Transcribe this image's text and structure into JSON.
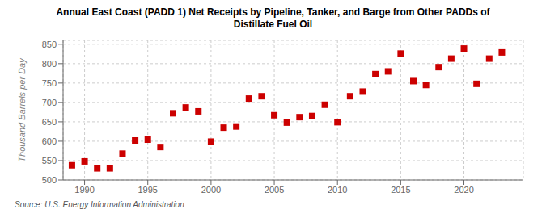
{
  "chart_data": {
    "type": "scatter",
    "title": "Annual East Coast (PADD 1) Net Receipts by Pipeline, Tanker, and Barge from Other PADDs of\nDistillate Fuel Oil",
    "ylabel": "Thousand Barrels per Day",
    "annotations": [
      "Source: U.S. Energy Information Administration"
    ],
    "x": [
      1989,
      1990,
      1991,
      1992,
      1993,
      1994,
      1995,
      1996,
      1997,
      1998,
      1999,
      2000,
      2001,
      2002,
      2003,
      2004,
      2005,
      2006,
      2007,
      2008,
      2009,
      2010,
      2011,
      2012,
      2013,
      2014,
      2015,
      2016,
      2017,
      2018,
      2019,
      2020,
      2021,
      2022,
      2023
    ],
    "values": [
      538,
      548,
      530,
      530,
      568,
      602,
      604,
      585,
      672,
      687,
      677,
      599,
      635,
      638,
      710,
      716,
      667,
      648,
      662,
      665,
      694,
      649,
      716,
      728,
      773,
      780,
      826,
      755,
      745,
      791,
      813,
      839,
      748,
      813,
      829
    ],
    "color": "#cc0000",
    "marker": "square",
    "xlim": [
      1988.3,
      2024.7
    ],
    "ylim": [
      500,
      860
    ],
    "xticks": [
      1990,
      1995,
      2000,
      2005,
      2010,
      2015,
      2020
    ],
    "yticks": [
      500,
      550,
      600,
      650,
      700,
      750,
      800,
      850
    ],
    "grid": true
  }
}
